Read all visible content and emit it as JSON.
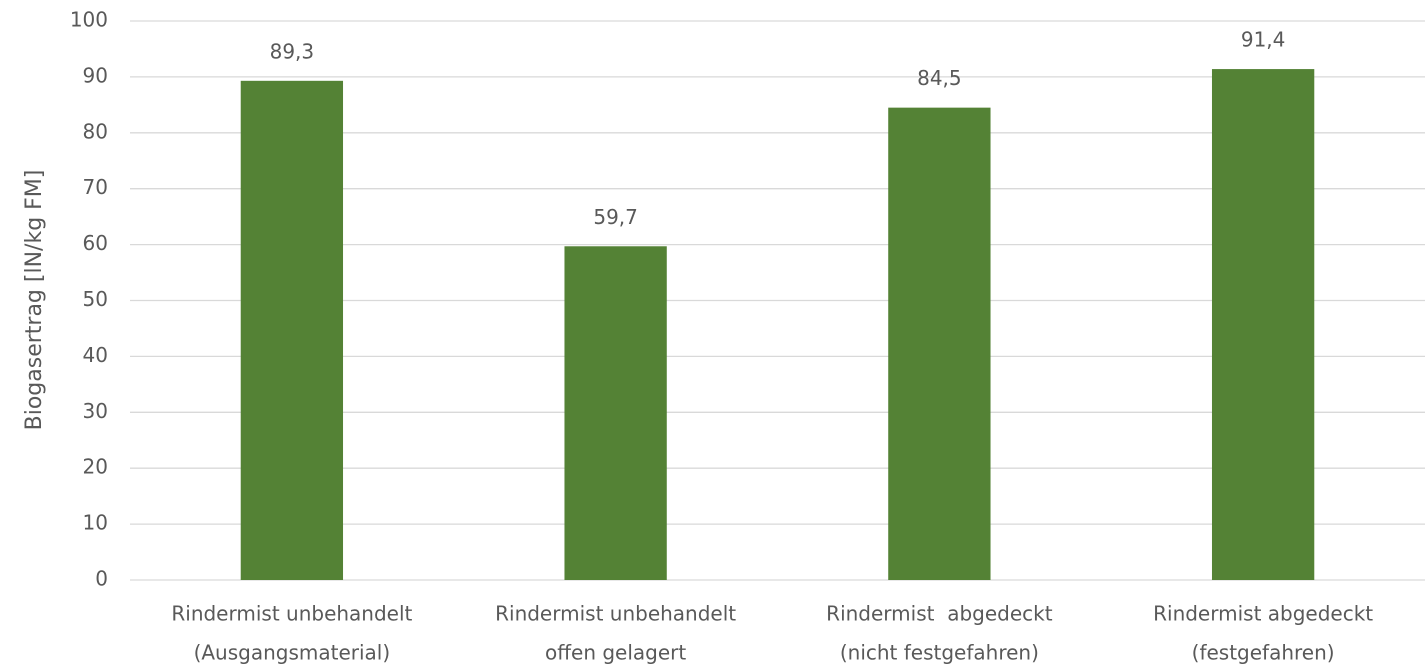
{
  "chart_data": {
    "type": "bar",
    "y_label": "Biogasertrag [lN/kg FM]",
    "categories": [
      [
        "Rindermist unbehandelt",
        "(Ausgangsmaterial)"
      ],
      [
        "Rindermist unbehandelt",
        "offen gelagert"
      ],
      [
        "Rindermist  abgedeckt",
        "(nicht festgefahren)"
      ],
      [
        "Rindermist abgedeckt",
        "(festgefahren)"
      ]
    ],
    "values": [
      89.3,
      59.7,
      84.5,
      91.4
    ],
    "value_labels": [
      "89,3",
      "59,7",
      "84,5",
      "91,4"
    ],
    "color": "#548235",
    "ylim": [
      0,
      100
    ],
    "yticks": [
      0,
      10,
      20,
      30,
      40,
      50,
      60,
      70,
      80,
      90,
      100
    ],
    "grid": true
  }
}
